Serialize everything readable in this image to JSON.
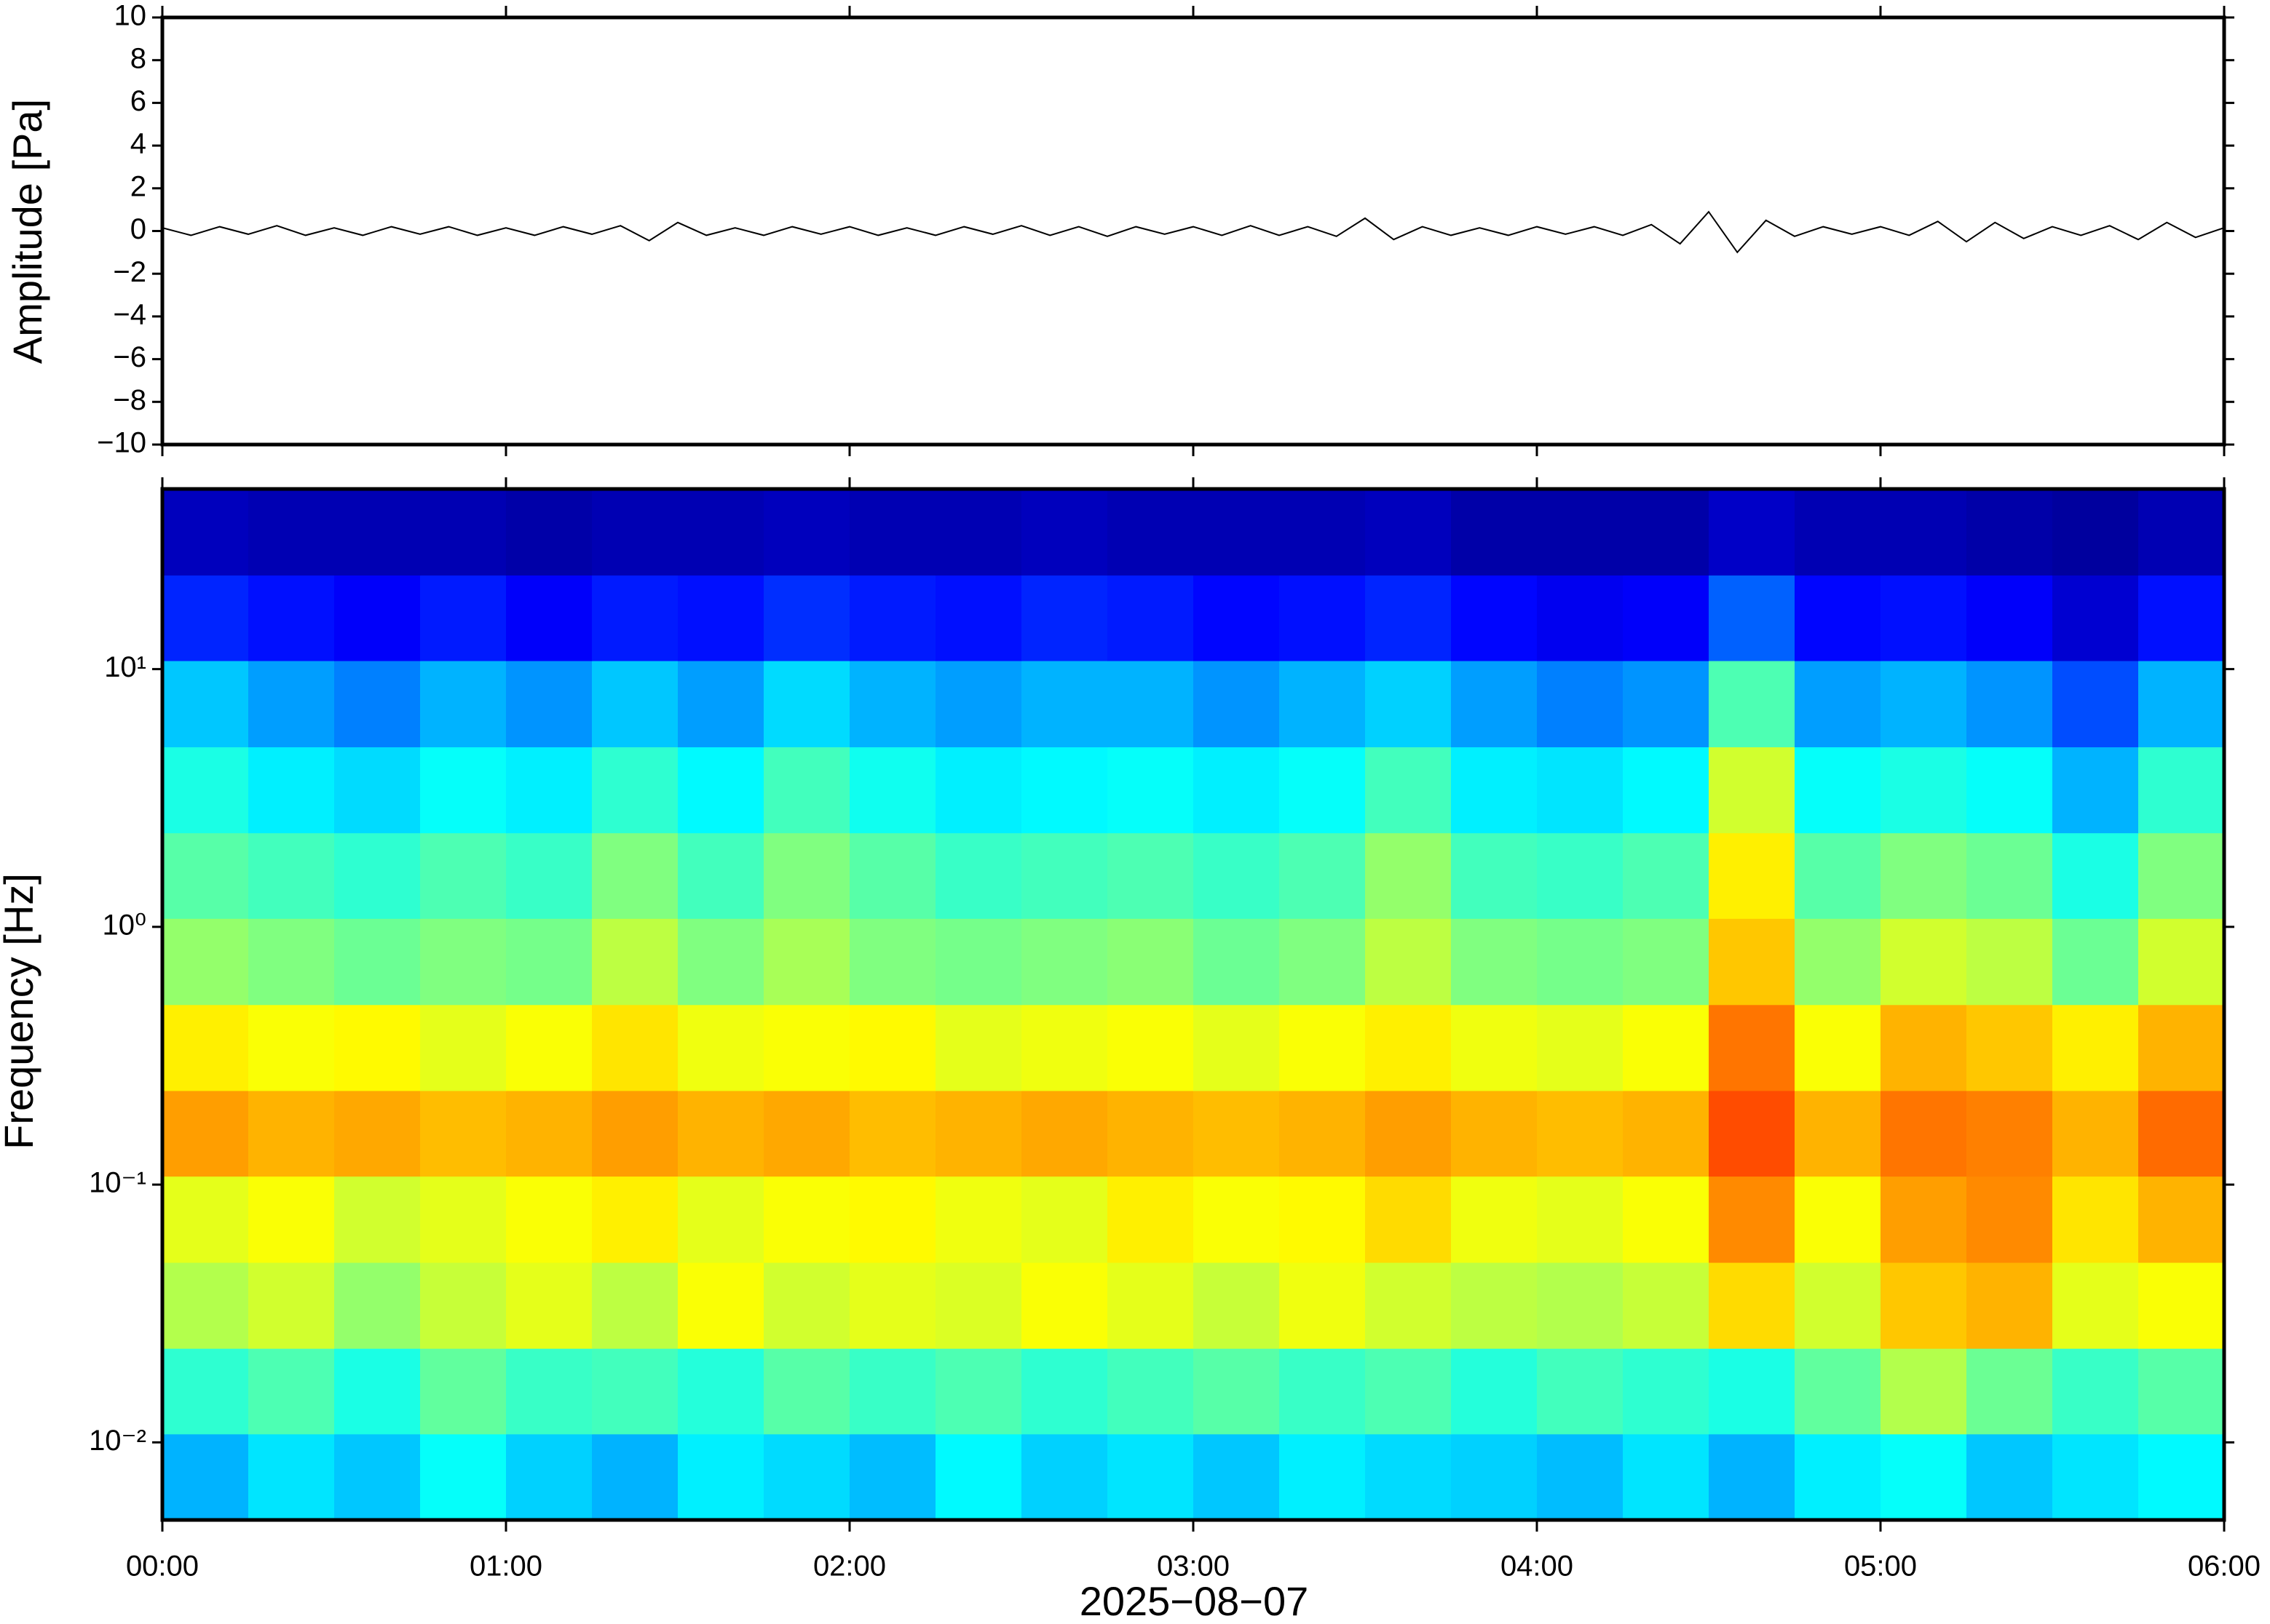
{
  "chart_data": [
    {
      "type": "line",
      "ylabel": "Amplitude [Pa]",
      "color": "#000000",
      "x": [
        "00:00",
        "00:05",
        "00:10",
        "00:15",
        "00:20",
        "00:25",
        "00:30",
        "00:35",
        "00:40",
        "00:45",
        "00:50",
        "00:55",
        "01:00",
        "01:05",
        "01:10",
        "01:15",
        "01:20",
        "01:25",
        "01:30",
        "01:35",
        "01:40",
        "01:45",
        "01:50",
        "01:55",
        "02:00",
        "02:05",
        "02:10",
        "02:15",
        "02:20",
        "02:25",
        "02:30",
        "02:35",
        "02:40",
        "02:45",
        "02:50",
        "02:55",
        "03:00",
        "03:05",
        "03:10",
        "03:15",
        "03:20",
        "03:25",
        "03:30",
        "03:35",
        "03:40",
        "03:45",
        "03:50",
        "03:55",
        "04:00",
        "04:05",
        "04:10",
        "04:15",
        "04:20",
        "04:25",
        "04:30",
        "04:35",
        "04:40",
        "04:45",
        "04:50",
        "04:55",
        "05:00",
        "05:05",
        "05:10",
        "05:15",
        "05:20",
        "05:25",
        "05:30",
        "05:35",
        "05:40",
        "05:45",
        "05:50",
        "05:55",
        "06:00"
      ],
      "values": [
        0.15,
        -0.2,
        0.2,
        -0.15,
        0.25,
        -0.2,
        0.15,
        -0.2,
        0.2,
        -0.15,
        0.2,
        -0.2,
        0.15,
        -0.2,
        0.2,
        -0.15,
        0.25,
        -0.45,
        0.4,
        -0.2,
        0.15,
        -0.2,
        0.2,
        -0.15,
        0.2,
        -0.2,
        0.15,
        -0.2,
        0.2,
        -0.15,
        0.25,
        -0.2,
        0.2,
        -0.25,
        0.2,
        -0.15,
        0.2,
        -0.2,
        0.25,
        -0.2,
        0.2,
        -0.25,
        0.6,
        -0.4,
        0.2,
        -0.2,
        0.15,
        -0.2,
        0.2,
        -0.15,
        0.2,
        -0.2,
        0.3,
        -0.6,
        0.9,
        -1.0,
        0.5,
        -0.25,
        0.2,
        -0.15,
        0.2,
        -0.2,
        0.45,
        -0.5,
        0.4,
        -0.35,
        0.2,
        -0.2,
        0.25,
        -0.4,
        0.4,
        -0.3,
        0.15
      ],
      "xlim": [
        "00:00",
        "06:00"
      ],
      "ylim": [
        -10,
        10
      ],
      "yticks": [
        {
          "value": -10,
          "label": "−10"
        },
        {
          "value": -8,
          "label": "−8"
        },
        {
          "value": -6,
          "label": "−6"
        },
        {
          "value": -4,
          "label": "−4"
        },
        {
          "value": -2,
          "label": "−2"
        },
        0,
        2,
        4,
        6,
        8,
        10
      ]
    },
    {
      "type": "heatmap",
      "ylabel": "Frequency [Hz]",
      "xlabel": "2025−08−07",
      "log_y": true,
      "colormap": "jet",
      "zlim": [
        0,
        1
      ],
      "x": [
        "00:00",
        "00:15",
        "00:30",
        "00:45",
        "01:00",
        "01:15",
        "01:30",
        "01:45",
        "02:00",
        "02:15",
        "02:30",
        "02:45",
        "03:00",
        "03:15",
        "03:30",
        "03:45",
        "04:00",
        "04:15",
        "04:30",
        "04:45",
        "05:00",
        "05:15",
        "05:30",
        "05:45",
        "06:00"
      ],
      "y": [
        0.005,
        0.0108,
        0.0232,
        0.05,
        0.108,
        0.232,
        0.5,
        1.08,
        2.32,
        5,
        10.8,
        23.2,
        50
      ],
      "z": [
        [
          0.3,
          0.35,
          0.32,
          0.38,
          0.33,
          0.3,
          0.36,
          0.34,
          0.31,
          0.37,
          0.33,
          0.35,
          0.32,
          0.36,
          0.34,
          0.33,
          0.31,
          0.35,
          0.3,
          0.36,
          0.38,
          0.32,
          0.35,
          0.37
        ],
        [
          0.42,
          0.45,
          0.4,
          0.47,
          0.43,
          0.44,
          0.41,
          0.46,
          0.43,
          0.45,
          0.42,
          0.44,
          0.46,
          0.43,
          0.45,
          0.41,
          0.44,
          0.42,
          0.4,
          0.47,
          0.55,
          0.48,
          0.43,
          0.46
        ],
        [
          0.55,
          0.58,
          0.52,
          0.57,
          0.6,
          0.56,
          0.62,
          0.58,
          0.6,
          0.59,
          0.62,
          0.6,
          0.57,
          0.61,
          0.58,
          0.56,
          0.55,
          0.57,
          0.66,
          0.58,
          0.68,
          0.7,
          0.6,
          0.62
        ],
        [
          0.6,
          0.62,
          0.58,
          0.6,
          0.62,
          0.64,
          0.6,
          0.62,
          0.63,
          0.61,
          0.6,
          0.64,
          0.62,
          0.63,
          0.66,
          0.61,
          0.6,
          0.62,
          0.74,
          0.62,
          0.72,
          0.74,
          0.65,
          0.7
        ],
        [
          0.72,
          0.7,
          0.71,
          0.69,
          0.7,
          0.72,
          0.7,
          0.71,
          0.69,
          0.7,
          0.71,
          0.7,
          0.69,
          0.7,
          0.72,
          0.7,
          0.69,
          0.7,
          0.8,
          0.7,
          0.76,
          0.75,
          0.7,
          0.77
        ],
        [
          0.64,
          0.62,
          0.63,
          0.6,
          0.62,
          0.65,
          0.61,
          0.62,
          0.63,
          0.6,
          0.61,
          0.62,
          0.6,
          0.62,
          0.64,
          0.61,
          0.6,
          0.62,
          0.76,
          0.62,
          0.7,
          0.68,
          0.64,
          0.7
        ],
        [
          0.52,
          0.5,
          0.48,
          0.5,
          0.49,
          0.56,
          0.5,
          0.54,
          0.5,
          0.49,
          0.5,
          0.51,
          0.48,
          0.5,
          0.56,
          0.5,
          0.49,
          0.5,
          0.68,
          0.52,
          0.58,
          0.56,
          0.48,
          0.58
        ],
        [
          0.46,
          0.44,
          0.42,
          0.45,
          0.43,
          0.5,
          0.44,
          0.5,
          0.46,
          0.43,
          0.44,
          0.45,
          0.43,
          0.45,
          0.52,
          0.44,
          0.43,
          0.45,
          0.64,
          0.46,
          0.5,
          0.48,
          0.4,
          0.5
        ],
        [
          0.4,
          0.36,
          0.34,
          0.38,
          0.36,
          0.42,
          0.37,
          0.44,
          0.39,
          0.36,
          0.37,
          0.38,
          0.36,
          0.38,
          0.44,
          0.36,
          0.35,
          0.37,
          0.58,
          0.38,
          0.4,
          0.38,
          0.3,
          0.42
        ],
        [
          0.32,
          0.28,
          0.25,
          0.3,
          0.27,
          0.32,
          0.28,
          0.34,
          0.3,
          0.28,
          0.3,
          0.3,
          0.27,
          0.3,
          0.33,
          0.28,
          0.25,
          0.27,
          0.45,
          0.28,
          0.3,
          0.27,
          0.2,
          0.3
        ],
        [
          0.16,
          0.14,
          0.12,
          0.15,
          0.12,
          0.15,
          0.14,
          0.17,
          0.15,
          0.14,
          0.16,
          0.15,
          0.13,
          0.14,
          0.16,
          0.13,
          0.11,
          0.12,
          0.22,
          0.13,
          0.14,
          0.12,
          0.08,
          0.14
        ],
        [
          0.06,
          0.05,
          0.05,
          0.05,
          0.04,
          0.05,
          0.05,
          0.06,
          0.05,
          0.05,
          0.06,
          0.05,
          0.05,
          0.05,
          0.06,
          0.04,
          0.04,
          0.04,
          0.07,
          0.05,
          0.05,
          0.04,
          0.03,
          0.05
        ]
      ],
      "xlim": [
        "00:00",
        "06:00"
      ],
      "ylim": [
        0.005,
        50
      ],
      "xticks": [
        "00:00",
        "01:00",
        "02:00",
        "03:00",
        "04:00",
        "05:00",
        "06:00"
      ],
      "yticks": [
        {
          "value": 0.01,
          "label": "10⁻²"
        },
        {
          "value": 0.1,
          "label": "10⁻¹"
        },
        {
          "value": 1,
          "label": "10⁰"
        },
        {
          "value": 10,
          "label": "10¹"
        }
      ]
    }
  ]
}
